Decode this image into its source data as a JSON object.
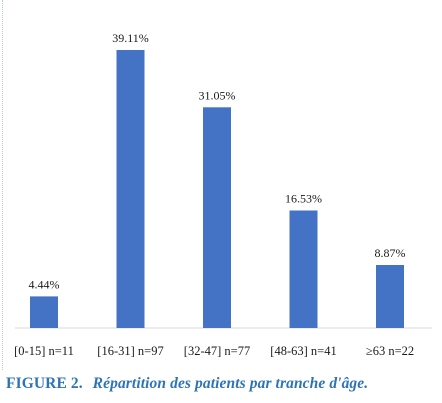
{
  "chart_data": {
    "type": "bar",
    "categories": [
      "[0-15] n=11",
      "[16-31] n=97",
      "[32-47] n=77",
      "[48-63] n=41",
      "≥63 n=22"
    ],
    "values": [
      4.44,
      39.11,
      31.05,
      16.53,
      8.87
    ],
    "data_labels": [
      "4.44%",
      "39.11%",
      "31.05%",
      "16.53%",
      "8.87%"
    ],
    "title": "",
    "xlabel": "",
    "ylabel": "",
    "ylim": [
      0,
      45
    ],
    "grid": false,
    "legend": "none",
    "bar_color": "#4472c4",
    "axis_color": "#d9d9d9"
  },
  "caption": {
    "label": "FIGURE 2.",
    "text": "Répartition des patients par tranche d'âge.",
    "color": "#2e74b5"
  }
}
